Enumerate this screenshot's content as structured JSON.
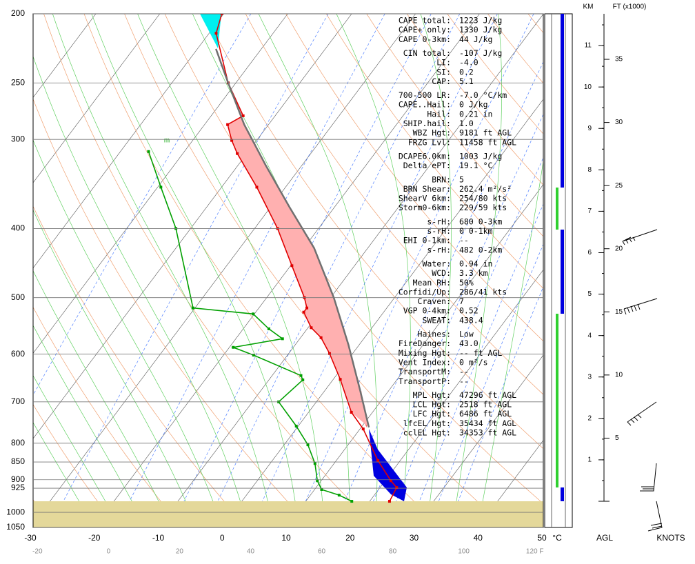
{
  "chart_data": {
    "type": "skewt",
    "ylim": [
      1050,
      200
    ],
    "yscale": "log",
    "yticks": [
      200,
      250,
      300,
      400,
      500,
      600,
      700,
      800,
      850,
      900,
      925,
      1000,
      1050
    ],
    "xlim": [
      -30,
      50
    ],
    "xticks": [
      -30,
      -20,
      -10,
      0,
      10,
      20,
      30,
      40,
      50
    ],
    "x_unit": "°C",
    "fticks": [
      -20,
      0,
      20,
      40,
      60,
      80,
      100,
      {
        "value": 120,
        "label": "120 F"
      }
    ],
    "annotation": "m",
    "series": [
      {
        "color": "#e00000",
        "pressure": [
          965,
          923,
          903,
          846,
          764,
          724,
          651,
          599,
          569,
          551,
          524,
          517,
          500,
          451,
          400,
          350,
          314,
          301,
          286,
          278,
          250,
          213,
          200
        ],
        "values": [
          23.1,
          22.6,
          20.9,
          16.5,
          10.5,
          6.7,
          1.1,
          -3.6,
          -6.8,
          -9.5,
          -12.5,
          -12.5,
          -14.1,
          -19.8,
          -26.4,
          -34.5,
          -41.5,
          -43.9,
          -46.4,
          -45.0,
          -51.2,
          -58.9,
          -60.3
        ]
      },
      {
        "color": "#00a000",
        "pressure": [
          965,
          946,
          929,
          903,
          854,
          804,
          757,
          700,
          652,
          643,
          602,
          587,
          571,
          553,
          527,
          517,
          400,
          350,
          312
        ],
        "values": [
          17.2,
          14.5,
          11.1,
          9.4,
          7.0,
          3.7,
          -0.3,
          -5.9,
          -4.7,
          -5.5,
          -15.3,
          -19.4,
          -12.7,
          -16.0,
          -20.2,
          -30.3,
          -42.3,
          -49.5,
          -55.6
        ]
      },
      {
        "color": "#707070",
        "pressure": [
          760,
          676,
          582,
          500,
          426,
          373,
          326,
          286,
          250,
          224
        ],
        "values": [
          11.2,
          5.6,
          -1.7,
          -9.5,
          -18.4,
          -27.1,
          -35.7,
          -43.8,
          -51.2,
          -57.1
        ]
      }
    ],
    "height_axis": {
      "km_title": "KM",
      "ft_title": "FT (x1000)",
      "km_lim": [
        0,
        12
      ],
      "km_ticks": [
        1,
        2,
        3,
        4,
        5,
        6,
        7,
        8,
        9,
        10,
        11
      ],
      "ft_ticks": [
        5,
        10,
        15,
        20,
        25,
        30,
        35
      ],
      "agl_label": "AGL",
      "wind_label": "KNOTS"
    },
    "stats": [
      [
        [
          "CAPE total:",
          "1223 J/kg"
        ],
        [
          "CAPE+ only:",
          "1330 J/kg"
        ],
        [
          "CAPE 0-3km:",
          "44 J/kg"
        ]
      ],
      [
        [
          "CIN total:",
          "-107 J/kg"
        ],
        [
          "LI:",
          "-4.0"
        ],
        [
          "SI:",
          "0.2"
        ],
        [
          "CAP:",
          "5.1"
        ]
      ],
      [
        [
          "700-500 LR:",
          "-7.0 °C/km"
        ],
        [
          "CAPE..Hail:",
          "0 J/kg"
        ],
        [
          "Hail:",
          "0.21 in"
        ],
        [
          "SHIP.hail:",
          "1.0"
        ],
        [
          "WBZ Hgt:",
          "9181 ft AGL"
        ],
        [
          "FRZG Lvl:",
          "11458 ft AGL"
        ]
      ],
      [
        [
          "DCAPE6.0km:",
          "1003 J/kg"
        ],
        [
          "Delta ePT:",
          "19.1 °C"
        ]
      ],
      [
        [
          "BRN:",
          "5"
        ],
        [
          "BRN Shear:",
          "262.4 m²/s²"
        ],
        [
          "ShearV 6km:",
          "254/80 kts"
        ],
        [
          "Storm0-6km:",
          "229/59 kts"
        ]
      ],
      [
        [
          "s-rH:",
          "680  0-3km"
        ],
        [
          "s-rH:",
          "0  0-1km"
        ],
        [
          "EHI 0-1km:",
          "--"
        ],
        [
          "s-rH:",
          "482  0-2km"
        ]
      ],
      [
        [
          "Water:",
          "0.94 in"
        ],
        [
          "WCD:",
          "3.3 km"
        ],
        [
          "Mean RH:",
          "50%"
        ],
        [
          "Corfidi/Up:",
          "286/41 kts"
        ],
        [
          "Craven:",
          "7"
        ],
        [
          "VGP 0-4km:",
          "0.52"
        ],
        [
          "SWEAT:",
          "438.4"
        ]
      ],
      [
        [
          "Haines:",
          "Low"
        ],
        [
          "FireDanger:",
          "43.0"
        ],
        [
          "Mixing Hgt:",
          "-- ft AGL"
        ],
        [
          "Vent Index:",
          "0 m²/s"
        ],
        [
          "TransportM:",
          "--"
        ],
        [
          "TransportP:",
          "--"
        ]
      ],
      [
        [
          "MPL Hgt:",
          "47296 ft AGL"
        ],
        [
          "LCL Hgt:",
          "2518 ft AGL"
        ],
        [
          "LFC Hgt:",
          "6486 ft AGL"
        ],
        [
          "lfcEL Hgt:",
          "35434 ft AGL"
        ],
        [
          "cclEL Hgt:",
          "34353 ft AGL"
        ]
      ]
    ]
  }
}
